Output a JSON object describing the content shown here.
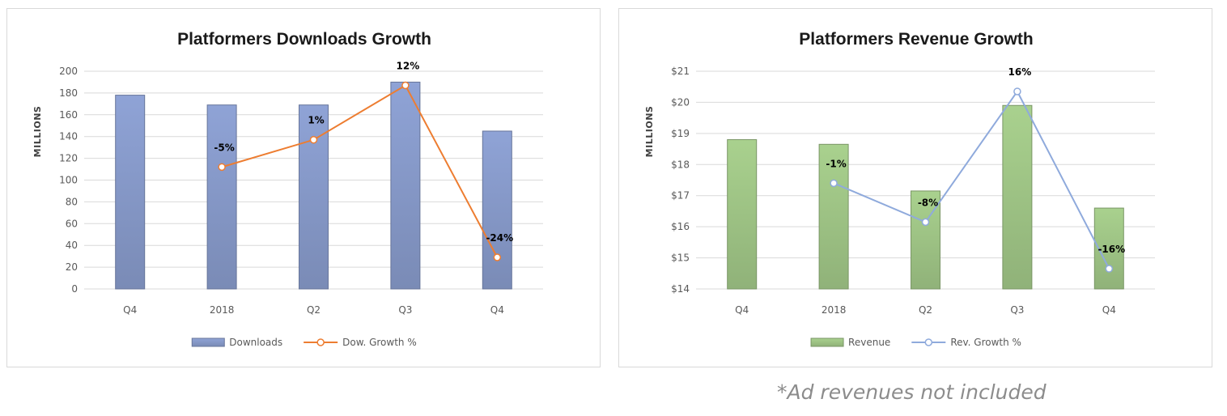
{
  "chart_data": [
    {
      "type": "bar",
      "title": "Platformers Downloads Growth",
      "xlabel": "",
      "ylabel": "MILLIONS",
      "categories": [
        "Q4",
        "2018",
        "Q2",
        "Q3",
        "Q4"
      ],
      "ylim": [
        0,
        200
      ],
      "yticks": [
        0,
        20,
        40,
        60,
        80,
        100,
        120,
        140,
        160,
        180,
        200
      ],
      "ytick_labels": [
        "0",
        "20",
        "40",
        "60",
        "80",
        "100",
        "120",
        "140",
        "160",
        "180",
        "200"
      ],
      "grid": true,
      "legend_position": "bottom",
      "series": [
        {
          "name": "Downloads",
          "type": "bar",
          "color": "#8fa3d6",
          "values": [
            178,
            169,
            169,
            190,
            145
          ]
        },
        {
          "name": "Dow. Growth %",
          "type": "line",
          "color": "#ed7d31",
          "plot_values": [
            null,
            112,
            137,
            187,
            29
          ],
          "labels": [
            null,
            "-5%",
            "1%",
            "12%",
            "-24%"
          ]
        }
      ]
    },
    {
      "type": "bar",
      "title": "Platformers Revenue Growth",
      "xlabel": "",
      "ylabel": "MILLIONS",
      "categories": [
        "Q4",
        "2018",
        "Q2",
        "Q3",
        "Q4"
      ],
      "ylim": [
        14,
        21
      ],
      "yticks": [
        14,
        15,
        16,
        17,
        18,
        19,
        20,
        21
      ],
      "ytick_labels": [
        "$14",
        "$15",
        "$16",
        "$17",
        "$18",
        "$19",
        "$20",
        "$21"
      ],
      "grid": true,
      "legend_position": "bottom",
      "series": [
        {
          "name": "Revenue",
          "type": "bar",
          "color": "#a9d18e",
          "values": [
            18.8,
            18.65,
            17.15,
            19.9,
            16.6
          ]
        },
        {
          "name": "Rev. Growth %",
          "type": "line",
          "color": "#8faadc",
          "plot_values": [
            null,
            17.4,
            16.15,
            20.35,
            14.65
          ],
          "labels": [
            null,
            "-1%",
            "-8%",
            "16%",
            "-16%"
          ]
        }
      ]
    }
  ],
  "footnote": "*Ad revenues not included"
}
